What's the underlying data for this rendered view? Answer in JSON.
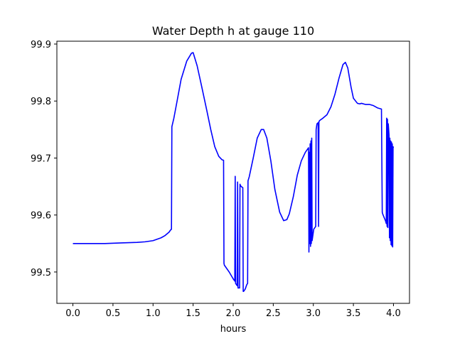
{
  "chart_data": {
    "type": "line",
    "title": "Water Depth h at gauge 110",
    "xlabel": "hours",
    "ylabel": "",
    "xlim": [
      -0.2,
      4.2
    ],
    "ylim": [
      99.445,
      99.905
    ],
    "xticks": [
      0.0,
      0.5,
      1.0,
      1.5,
      2.0,
      2.5,
      3.0,
      3.5,
      4.0
    ],
    "xtick_labels": [
      "0.0",
      "0.5",
      "1.0",
      "1.5",
      "2.0",
      "2.5",
      "3.0",
      "3.5",
      "4.0"
    ],
    "yticks": [
      99.5,
      99.6,
      99.7,
      99.8,
      99.9
    ],
    "ytick_labels": [
      "99.5",
      "99.6",
      "99.7",
      "99.8",
      "99.9"
    ],
    "grid": false,
    "series": [
      {
        "color": "#0000ff",
        "x": [
          0.0,
          0.4,
          0.6,
          0.8,
          0.9,
          1.0,
          1.1,
          1.15,
          1.2,
          1.22,
          1.23,
          1.235,
          1.26,
          1.3,
          1.35,
          1.42,
          1.48,
          1.5,
          1.55,
          1.6,
          1.67,
          1.72,
          1.77,
          1.82,
          1.86,
          1.88,
          1.885,
          1.89,
          1.95,
          2.0,
          2.02,
          2.025,
          2.03,
          2.05,
          2.055,
          2.06,
          2.08,
          2.085,
          2.09,
          2.1,
          2.12,
          2.125,
          2.13,
          2.15,
          2.17,
          2.18,
          2.185,
          2.2,
          2.25,
          2.3,
          2.35,
          2.38,
          2.42,
          2.47,
          2.52,
          2.58,
          2.63,
          2.67,
          2.7,
          2.75,
          2.8,
          2.85,
          2.9,
          2.94,
          2.945,
          2.95,
          2.955,
          2.96,
          2.965,
          2.97,
          2.975,
          2.98,
          2.985,
          2.99,
          2.995,
          3.0,
          3.005,
          3.03,
          3.035,
          3.04,
          3.045,
          3.06,
          3.065,
          3.07,
          3.08,
          3.12,
          3.17,
          3.22,
          3.27,
          3.32,
          3.37,
          3.4,
          3.43,
          3.47,
          3.5,
          3.55,
          3.58,
          3.6,
          3.65,
          3.7,
          3.75,
          3.8,
          3.85,
          3.86,
          3.865,
          3.9,
          3.91,
          3.915,
          3.92,
          3.925,
          3.93,
          3.935,
          3.94,
          3.945,
          3.95,
          3.955,
          3.96,
          3.965,
          3.97,
          3.975,
          3.98,
          3.985,
          3.99,
          3.995,
          4.0
        ],
        "y": [
          99.55,
          99.55,
          99.551,
          99.552,
          99.553,
          99.555,
          99.56,
          99.564,
          99.57,
          99.574,
          99.575,
          99.755,
          99.77,
          99.8,
          99.838,
          99.87,
          99.884,
          99.885,
          99.862,
          99.83,
          99.784,
          99.75,
          99.72,
          99.703,
          99.697,
          99.696,
          99.515,
          99.512,
          99.5,
          99.488,
          99.484,
          99.668,
          99.48,
          99.476,
          99.658,
          99.472,
          99.472,
          99.654,
          99.652,
          99.65,
          99.648,
          99.466,
          99.466,
          99.47,
          99.478,
          99.48,
          99.66,
          99.667,
          99.7,
          99.735,
          99.75,
          99.75,
          99.735,
          99.695,
          99.645,
          99.605,
          99.59,
          99.592,
          99.602,
          99.632,
          99.67,
          99.695,
          99.71,
          99.718,
          99.535,
          99.71,
          99.55,
          99.725,
          99.545,
          99.73,
          99.55,
          99.735,
          99.555,
          99.56,
          99.565,
          99.57,
          99.575,
          99.58,
          99.75,
          99.755,
          99.76,
          99.762,
          99.58,
          99.764,
          99.766,
          99.77,
          99.776,
          99.79,
          99.812,
          99.84,
          99.864,
          99.868,
          99.858,
          99.825,
          99.805,
          99.796,
          99.795,
          99.796,
          99.794,
          99.794,
          99.792,
          99.788,
          99.786,
          99.605,
          99.602,
          99.59,
          99.585,
          99.77,
          99.58,
          99.768,
          99.578,
          99.76,
          99.75,
          99.74,
          99.56,
          99.735,
          99.555,
          99.73,
          99.548,
          99.728,
          99.546,
          99.725,
          99.544,
          99.72,
          99.718
        ]
      }
    ]
  }
}
